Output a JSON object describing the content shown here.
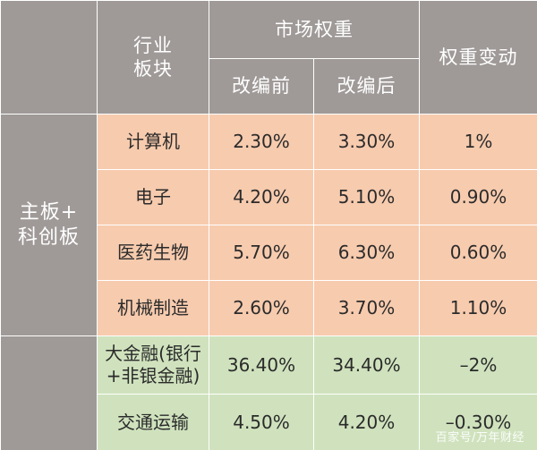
{
  "header": {
    "industry_line1": "行业",
    "industry_line2": "板块",
    "market_weight": "市场权重",
    "before": "改编前",
    "after": "改编后",
    "change": "权重变动"
  },
  "sidebar": {
    "group_line1": "主板+",
    "group_line2": "科创板"
  },
  "rows": [
    {
      "sector": "计算机",
      "before": "2.30%",
      "after": "3.30%",
      "change": "1%"
    },
    {
      "sector": "电子",
      "before": "4.20%",
      "after": "5.10%",
      "change": "0.90%"
    },
    {
      "sector": "医药生物",
      "before": "5.70%",
      "after": "6.30%",
      "change": "0.60%"
    },
    {
      "sector": "机械制造",
      "before": "2.60%",
      "after": "3.70%",
      "change": "1.10%"
    },
    {
      "sector_line1": "大金融(银行",
      "sector_line2": "+非银金融)",
      "before": "36.40%",
      "after": "34.40%",
      "change": "–2%"
    },
    {
      "sector": "交通运输",
      "before": "4.50%",
      "after": "4.20%",
      "change": "–0.30%"
    }
  ],
  "colors": {
    "header_gray": "#9f9a98",
    "orange_fill": "#f7cbae",
    "green_fill": "#cfe2bd"
  },
  "watermark": "百家号/万年财经"
}
